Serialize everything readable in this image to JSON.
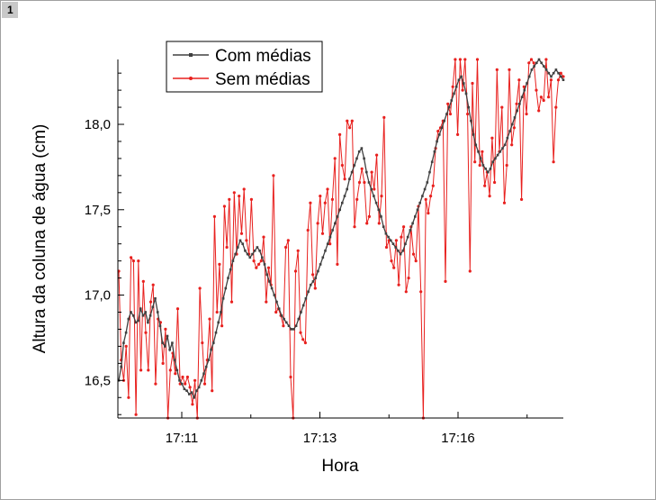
{
  "window": {
    "page_number": "1"
  },
  "chart_data": {
    "type": "line",
    "title": "",
    "xlabel": "Hora",
    "ylabel": "Altura da coluna de água (cm)",
    "x_ticks": [
      "17:11",
      "17:13",
      "17:16"
    ],
    "y_ticks": [
      "16,5",
      "17,0",
      "17,5",
      "18,0"
    ],
    "ylim": [
      16.28,
      18.38
    ],
    "grid": false,
    "legend_position": "top-left",
    "series": [
      {
        "name": "Com médias",
        "color": "#404040",
        "values": [
          16.5,
          16.58,
          16.72,
          16.78,
          16.86,
          16.9,
          16.88,
          16.84,
          16.85,
          16.92,
          16.88,
          16.9,
          16.84,
          16.88,
          16.93,
          16.98,
          16.9,
          16.82,
          16.72,
          16.7,
          16.76,
          16.68,
          16.72,
          16.62,
          16.56,
          16.5,
          16.48,
          16.45,
          16.44,
          16.42,
          16.43,
          16.4,
          16.44,
          16.46,
          16.5,
          16.54,
          16.58,
          16.62,
          16.68,
          16.72,
          16.78,
          16.84,
          16.9,
          16.98,
          17.04,
          17.1,
          17.15,
          17.2,
          17.24,
          17.28,
          17.32,
          17.3,
          17.26,
          17.24,
          17.22,
          17.24,
          17.26,
          17.28,
          17.26,
          17.22,
          17.18,
          17.12,
          17.08,
          17.04,
          17.0,
          16.96,
          16.92,
          16.88,
          16.86,
          16.84,
          16.82,
          16.8,
          16.8,
          16.82,
          16.86,
          16.9,
          16.94,
          16.98,
          17.02,
          17.06,
          17.08,
          17.1,
          17.14,
          17.18,
          17.22,
          17.26,
          17.3,
          17.34,
          17.38,
          17.42,
          17.46,
          17.5,
          17.54,
          17.58,
          17.62,
          17.68,
          17.72,
          17.76,
          17.8,
          17.84,
          17.86,
          17.8,
          17.72,
          17.66,
          17.62,
          17.58,
          17.54,
          17.5,
          17.46,
          17.4,
          17.36,
          17.34,
          17.32,
          17.3,
          17.28,
          17.26,
          17.24,
          17.26,
          17.3,
          17.34,
          17.38,
          17.42,
          17.46,
          17.5,
          17.54,
          17.58,
          17.62,
          17.66,
          17.72,
          17.78,
          17.84,
          17.9,
          17.94,
          17.98,
          18.02,
          18.06,
          18.1,
          18.14,
          18.18,
          18.22,
          18.26,
          18.28,
          18.24,
          18.18,
          18.1,
          18.02,
          17.94,
          17.88,
          17.84,
          17.8,
          17.76,
          17.74,
          17.72,
          17.74,
          17.78,
          17.8,
          17.82,
          17.84,
          17.86,
          17.88,
          17.92,
          17.96,
          18.0,
          18.04,
          18.08,
          18.12,
          18.16,
          18.2,
          18.24,
          18.28,
          18.32,
          18.34,
          18.36,
          18.38,
          18.36,
          18.34,
          18.32,
          18.3,
          18.28,
          18.3,
          18.32,
          18.3,
          18.28,
          18.26
        ]
      },
      {
        "name": "Sem médias",
        "color": "#e8201e",
        "values": [
          17.14,
          16.62,
          16.5,
          16.7,
          16.4,
          17.22,
          17.2,
          16.3,
          17.2,
          16.56,
          17.08,
          16.78,
          16.56,
          16.96,
          17.06,
          16.48,
          16.86,
          16.84,
          16.6,
          16.8,
          16.28,
          16.56,
          16.66,
          16.54,
          16.92,
          16.48,
          16.52,
          16.48,
          16.52,
          16.46,
          16.36,
          16.5,
          16.28,
          17.04,
          16.72,
          16.48,
          16.62,
          16.86,
          16.44,
          17.46,
          16.9,
          17.18,
          16.82,
          17.52,
          17.28,
          17.56,
          16.96,
          17.6,
          17.24,
          17.58,
          17.36,
          17.62,
          17.32,
          17.24,
          17.56,
          17.2,
          17.16,
          17.18,
          17.2,
          17.34,
          16.96,
          17.16,
          17.06,
          17.7,
          16.9,
          16.92,
          16.88,
          16.82,
          17.28,
          17.32,
          16.52,
          16.28,
          17.14,
          17.26,
          16.78,
          16.74,
          16.72,
          17.38,
          17.54,
          17.12,
          17.04,
          17.42,
          17.58,
          17.36,
          17.54,
          17.62,
          17.3,
          17.56,
          17.8,
          17.18,
          17.94,
          17.76,
          17.68,
          18.02,
          17.98,
          18.02,
          17.4,
          17.56,
          17.66,
          17.74,
          17.66,
          17.42,
          17.46,
          17.72,
          17.62,
          17.82,
          17.42,
          17.58,
          18.04,
          17.28,
          17.32,
          17.2,
          17.16,
          17.32,
          17.06,
          17.34,
          17.4,
          17.02,
          17.1,
          17.4,
          17.24,
          17.2,
          17.52,
          17.02,
          16.28,
          17.56,
          17.48,
          17.58,
          17.64,
          17.86,
          17.96,
          17.98,
          18.02,
          17.08,
          18.12,
          18.06,
          18.22,
          18.38,
          17.94,
          18.38,
          18.2,
          18.38,
          18.06,
          17.14,
          18.24,
          17.78,
          18.38,
          17.76,
          17.84,
          17.64,
          17.72,
          17.58,
          17.92,
          17.66,
          18.32,
          17.84,
          18.1,
          17.54,
          17.76,
          18.32,
          17.88,
          17.98,
          18.12,
          18.26,
          17.56,
          18.22,
          18.06,
          18.36,
          18.38,
          18.36,
          18.2,
          18.08,
          18.16,
          18.14,
          18.38,
          18.16,
          18.26,
          17.78,
          18.1,
          18.26,
          18.3,
          18.28
        ]
      }
    ]
  }
}
